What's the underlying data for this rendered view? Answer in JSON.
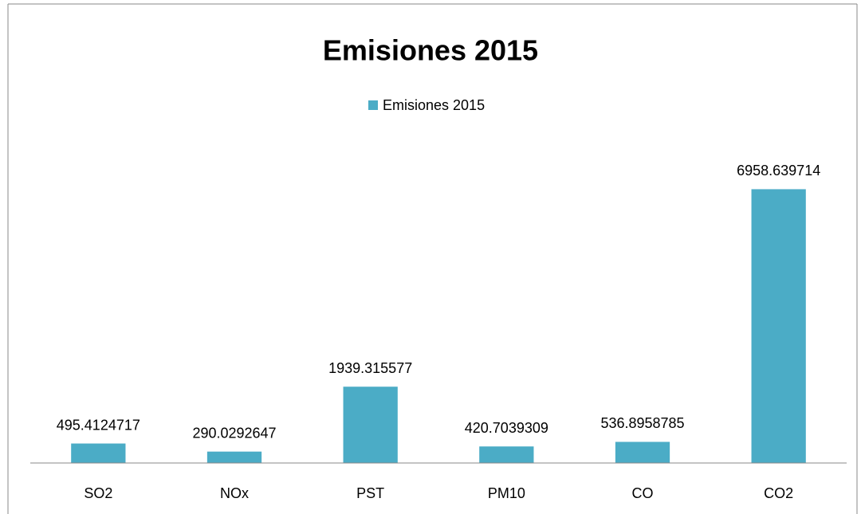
{
  "chart_data": {
    "type": "bar",
    "title": "Emisiones 2015",
    "categories": [
      "SO2",
      "NOx",
      "PST",
      "PM10",
      "CO",
      "CO2"
    ],
    "series": [
      {
        "name": "Emisiones 2015",
        "color": "#4bacc6",
        "values": [
          495.4124717,
          290.0292647,
          1939.315577,
          420.7039309,
          536.8958785,
          6958.639714
        ]
      }
    ],
    "ylim": [
      0,
      8000
    ],
    "legend": "top"
  }
}
